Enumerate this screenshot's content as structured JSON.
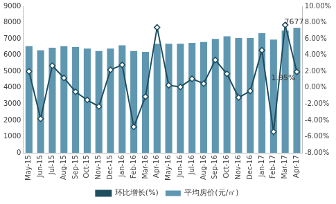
{
  "chart_data": {
    "type": "bar",
    "categories": [
      "May-15",
      "Jun-15",
      "Jul-15",
      "Aug-15",
      "Sep-15",
      "Oct-15",
      "Nov-15",
      "Dec-15",
      "Jan-16",
      "Feb-16",
      "Mar-16",
      "Apr-16",
      "May-16",
      "Jun-16",
      "Jul-16",
      "Aug-16",
      "Sep-16",
      "Oct-16",
      "Nov-16",
      "Dec-16",
      "Jan-17",
      "Feb-17",
      "Mar-17",
      "Apr-17"
    ],
    "series": [
      {
        "name": "平均房价(元/㎡)",
        "type": "bar",
        "color": "#5f97b0",
        "values": [
          6550,
          6300,
          6450,
          6550,
          6500,
          6400,
          6250,
          6400,
          6600,
          6250,
          6200,
          6700,
          6700,
          6700,
          6750,
          6800,
          7000,
          7150,
          7050,
          7050,
          7350,
          6950,
          7500,
          7677
        ],
        "value_labels": [
          null,
          null,
          null,
          null,
          null,
          null,
          null,
          null,
          null,
          null,
          null,
          null,
          null,
          null,
          null,
          null,
          null,
          null,
          null,
          null,
          null,
          null,
          null,
          "7677"
        ]
      },
      {
        "name": "环比增长(%)",
        "type": "line",
        "axis": "y2",
        "color": "#1f4e5f",
        "marker": "diamond",
        "values": [
          2.0,
          -3.8,
          2.7,
          1.2,
          -0.5,
          -1.5,
          -2.3,
          2.2,
          2.8,
          -4.8,
          -1.1,
          7.4,
          0.3,
          0.1,
          1.1,
          0.5,
          3.4,
          1.7,
          -1.2,
          -0.4,
          4.6,
          -5.4,
          7.7,
          1.95
        ],
        "value_labels": [
          null,
          null,
          null,
          null,
          null,
          null,
          null,
          null,
          null,
          null,
          null,
          null,
          null,
          null,
          null,
          null,
          null,
          null,
          null,
          null,
          null,
          null,
          null,
          "1.95%"
        ]
      }
    ],
    "ylim": [
      0,
      9000
    ],
    "yticks": [
      0,
      1000,
      2000,
      3000,
      4000,
      5000,
      6000,
      7000,
      8000,
      9000
    ],
    "y2lim": [
      -8,
      10
    ],
    "y2ticks": [
      {
        "value": -8,
        "label": "-8.00%"
      },
      {
        "value": -6,
        "label": "-6.00%"
      },
      {
        "value": -4,
        "label": "-4.00%"
      },
      {
        "value": -2,
        "label": "-2.00%"
      },
      {
        "value": 0,
        "label": "0.00%"
      },
      {
        "value": 2,
        "label": "2.00%"
      },
      {
        "value": 4,
        "label": "4.00%"
      },
      {
        "value": 6,
        "label": "6.00%"
      },
      {
        "value": 8,
        "label": "8.00%"
      },
      {
        "value": 10,
        "label": "10.00%"
      }
    ],
    "grid": false,
    "legend": "bottom"
  }
}
